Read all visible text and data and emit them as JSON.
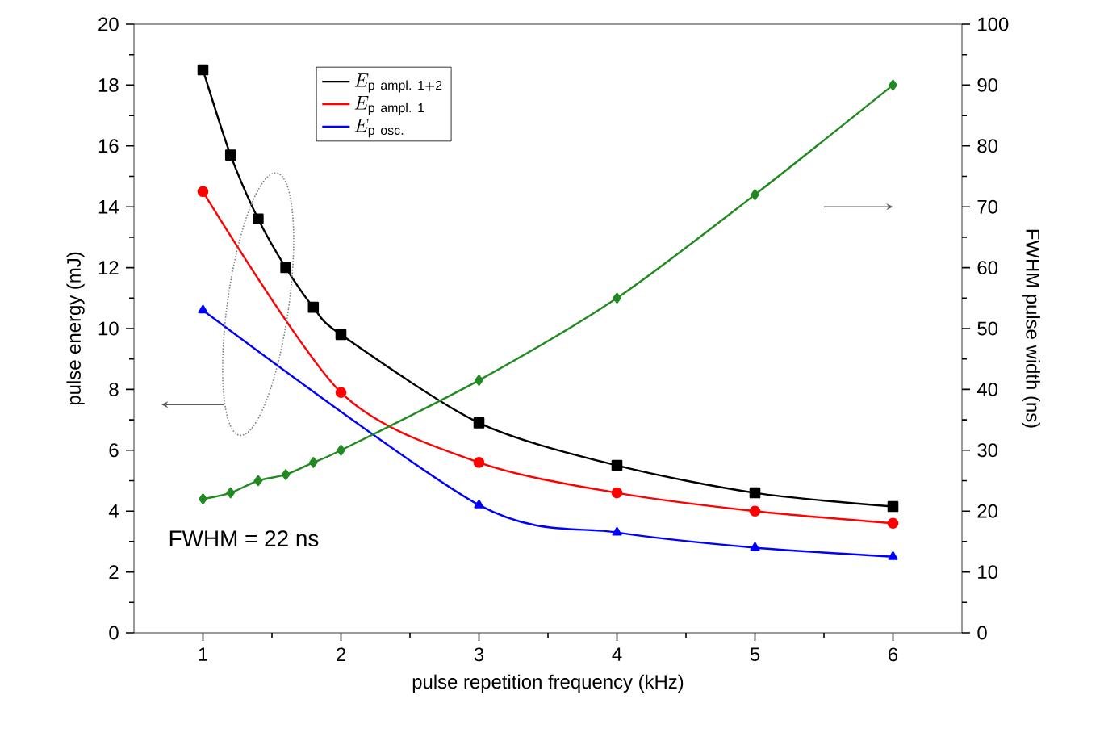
{
  "chart_data": {
    "type": "line",
    "xlabel": "pulse repetition frequency (kHz)",
    "ylabel": "pulse energy (mJ)",
    "y2label": "FWHM pulse width (ns)",
    "xlim": [
      0.5,
      6.5
    ],
    "xticks": [
      1,
      2,
      3,
      4,
      5,
      6
    ],
    "ylim": [
      0,
      20
    ],
    "yticks": [
      0,
      2,
      4,
      6,
      8,
      10,
      12,
      14,
      16,
      18,
      20
    ],
    "y2lim": [
      0,
      100
    ],
    "y2ticks": [
      0,
      10,
      20,
      30,
      40,
      50,
      60,
      70,
      80,
      90,
      100
    ],
    "legend": "top",
    "grid": false,
    "annotations": [
      "FWHM = 22 ns"
    ],
    "series": [
      {
        "name": "E_{\\mathrm{p\\ ampl.\\ 1+2}}",
        "color": "#000000",
        "marker": "square",
        "x": [
          1,
          1.2,
          1.4,
          1.6,
          1.8,
          2,
          3,
          4,
          5,
          6
        ],
        "values": [
          18.5,
          15.7,
          13.6,
          12.0,
          10.7,
          9.8,
          6.9,
          5.5,
          4.6,
          4.15
        ]
      },
      {
        "name": "E_{\\mathrm{p\\ ampl.\\ 1}}",
        "color": "#ff0000",
        "marker": "circle",
        "x": [
          1,
          2,
          3,
          4,
          5,
          6
        ],
        "values": [
          14.5,
          7.9,
          5.6,
          4.6,
          4.0,
          3.6
        ]
      },
      {
        "name": "E_{\\mathrm{p\\ osc.}}",
        "color": "#0000ff",
        "marker": "triangle",
        "x": [
          1,
          3,
          4,
          5,
          6
        ],
        "values": [
          10.6,
          4.2,
          3.3,
          2.8,
          2.5
        ]
      },
      {
        "color": "#218a21",
        "marker": "diamond",
        "axis": "y2",
        "x": [
          1,
          1.2,
          1.4,
          1.6,
          1.8,
          2,
          3,
          4,
          5,
          6
        ],
        "values": [
          22,
          23,
          25,
          26,
          28,
          30,
          41.5,
          55,
          72,
          90
        ]
      }
    ]
  }
}
